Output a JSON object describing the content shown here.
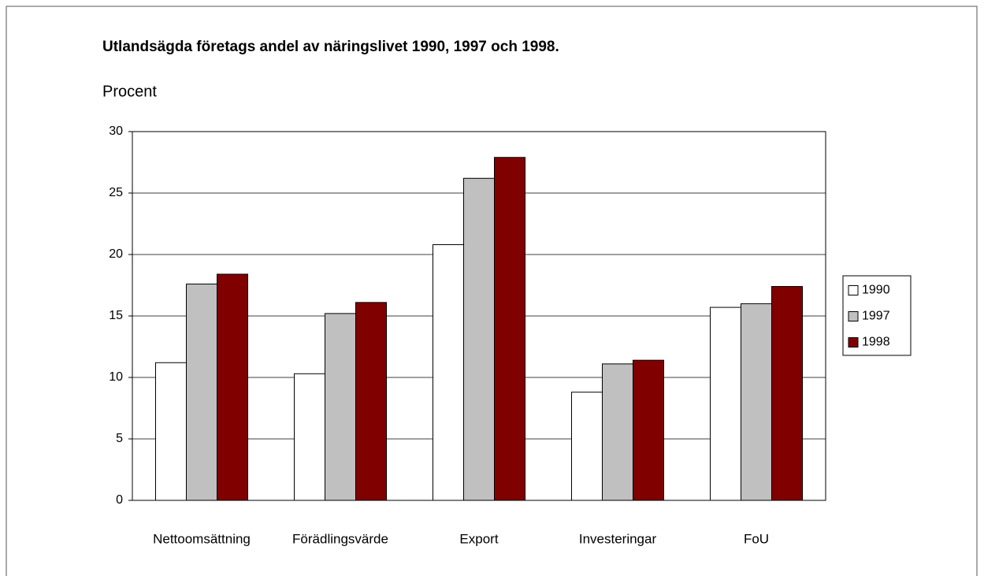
{
  "chart_data": {
    "type": "bar",
    "title": "Utlandsägda företags andel av näringslivet 1990, 1997 och 1998.",
    "y_label": "Procent",
    "categories": [
      "Nettoomsättning",
      "Förädlingsvärde",
      "Export",
      "Investeringar",
      "FoU"
    ],
    "series": [
      {
        "name": "1990",
        "color": "#ffffff",
        "values": [
          11.2,
          10.3,
          20.8,
          8.8,
          15.7
        ]
      },
      {
        "name": "1997",
        "color": "#c0c0c0",
        "values": [
          17.6,
          15.2,
          26.2,
          11.1,
          16.0
        ]
      },
      {
        "name": "1998",
        "color": "#800000",
        "values": [
          18.4,
          16.1,
          27.9,
          11.4,
          17.4
        ]
      }
    ],
    "ylim": [
      0,
      30
    ],
    "yticks": [
      0,
      5,
      10,
      15,
      20,
      25,
      30
    ],
    "grid": true,
    "legend": "right"
  }
}
